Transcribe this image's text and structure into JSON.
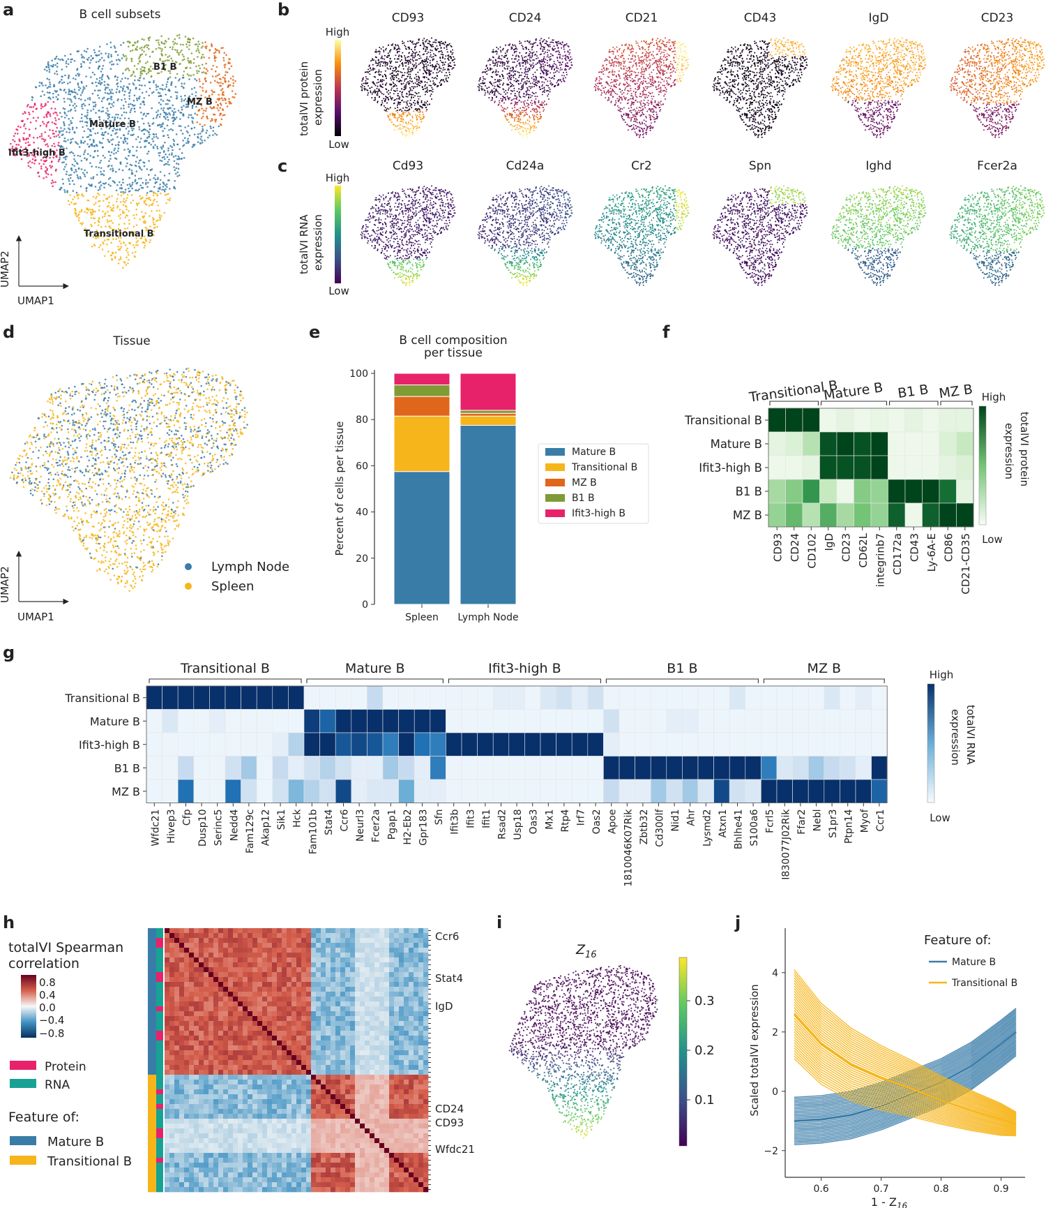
{
  "colors": {
    "mature": "#3a7ca8",
    "transitional": "#f6b51a",
    "mz": "#e0661b",
    "b1": "#7f9b35",
    "ifit3": "#e8226a",
    "protein": "#e8226a",
    "rna": "#17a294",
    "greens_hi": "#00441b",
    "blues_hi": "#08306b",
    "diag": "#67001f"
  },
  "panels": {
    "a": {
      "label": "a",
      "title": "B cell subsets",
      "axis_x": "UMAP1",
      "axis_y": "UMAP2",
      "clusters": [
        "B1 B",
        "MZ B",
        "Mature B",
        "Ifit3-high B",
        "Transitional B"
      ]
    },
    "b": {
      "label": "b",
      "colorbar_label_1": "totalVI protein",
      "colorbar_label_2": "expression",
      "high": "High",
      "low": "Low",
      "markers": [
        "CD93",
        "CD24",
        "CD21",
        "CD43",
        "IgD",
        "CD23"
      ]
    },
    "c": {
      "label": "c",
      "colorbar_label_1": "totalVI RNA",
      "colorbar_label_2": "expression",
      "high": "High",
      "low": "Low",
      "markers": [
        "Cd93",
        "Cd24a",
        "Cr2",
        "Spn",
        "Ighd",
        "Fcer2a"
      ]
    },
    "d": {
      "label": "d",
      "title": "Tissue",
      "axis_x": "UMAP1",
      "axis_y": "UMAP2",
      "legend": [
        "Lymph Node",
        "Spleen"
      ]
    },
    "e": {
      "label": "e"
    },
    "f": {
      "label": "f",
      "colorbar_label_1": "totalVI protein",
      "colorbar_label_2": "expression",
      "high": "High",
      "low": "Low"
    },
    "g": {
      "label": "g",
      "colorbar_label_1": "totalVI RNA",
      "colorbar_label_2": "expression",
      "high": "High",
      "low": "Low"
    },
    "h": {
      "label": "h",
      "cbar_title_1": "totalVI Spearman",
      "cbar_title_2": "correlation",
      "cbar_ticks": [
        "0.8",
        "0.4",
        "0.0",
        "−0.4",
        "−0.8"
      ],
      "legend_protein": "Protein",
      "legend_rna": "RNA",
      "feature_of": "Feature of:",
      "feature_mature": "Mature B",
      "feature_trans": "Transitional B",
      "row_labels": [
        "Ccr6",
        "Stat4",
        "IgD",
        "CD24",
        "CD93",
        "Wfdc21"
      ]
    },
    "i": {
      "label": "i",
      "title": "Z",
      "title_sub": "16",
      "cbar_ticks": [
        "0.3",
        "0.2",
        "0.1"
      ]
    },
    "j": {
      "label": "j"
    }
  },
  "chart_data": [
    {
      "type": "bar",
      "id": "e",
      "title": "B cell composition per tissue",
      "title_line1": "B cell composition",
      "title_line2": "per tissue",
      "categories": [
        "Spleen",
        "Lymph Node"
      ],
      "ylabel": "Percent of cells per tissue",
      "ylim": [
        0,
        100
      ],
      "yticks": [
        "0",
        "20",
        "40",
        "60",
        "80",
        "100"
      ],
      "stacked": true,
      "series": [
        {
          "name": "Mature B",
          "values": [
            57.5,
            77.5
          ]
        },
        {
          "name": "Transitional B",
          "values": [
            24,
            4
          ]
        },
        {
          "name": "MZ B",
          "values": [
            8.5,
            1.2
          ]
        },
        {
          "name": "B1 B",
          "values": [
            5,
            1.3
          ]
        },
        {
          "name": "Ifit3-high B",
          "values": [
            5,
            16
          ]
        }
      ]
    },
    {
      "type": "heatmap",
      "id": "f",
      "rows": [
        "Transitional B",
        "Mature B",
        "Ifit3-high B",
        "B1 B",
        "MZ B"
      ],
      "columns": [
        "CD93",
        "CD24",
        "CD102",
        "IgD",
        "CD23",
        "CD62L",
        "integrinb7",
        "CD172a",
        "CD43",
        "Ly-6A-E",
        "CD86",
        "CD21-CD35"
      ],
      "groups": [
        {
          "name": "Transitional B",
          "start": 0,
          "end": 2
        },
        {
          "name": "Mature B",
          "start": 3,
          "end": 6
        },
        {
          "name": "B1 B",
          "start": 7,
          "end": 9
        },
        {
          "name": "MZ B",
          "start": 10,
          "end": 11
        }
      ],
      "values": [
        [
          1.0,
          1.0,
          1.0,
          0.05,
          0.1,
          0.05,
          0.08,
          0.05,
          0.1,
          0.05,
          0.1,
          0.1
        ],
        [
          0.1,
          0.15,
          0.3,
          0.95,
          1.0,
          0.95,
          1.0,
          0.05,
          0.05,
          0.05,
          0.15,
          0.25
        ],
        [
          0.05,
          0.05,
          0.1,
          0.95,
          0.95,
          0.95,
          1.0,
          0.05,
          0.05,
          0.05,
          0.1,
          0.15
        ],
        [
          0.35,
          0.45,
          0.7,
          0.25,
          0.05,
          0.45,
          0.4,
          1.0,
          1.0,
          1.0,
          0.85,
          0.1
        ],
        [
          0.4,
          0.55,
          0.3,
          0.6,
          0.35,
          0.5,
          0.4,
          0.9,
          0.05,
          0.9,
          1.0,
          1.0
        ]
      ]
    },
    {
      "type": "heatmap",
      "id": "g",
      "rows": [
        "Transitional B",
        "Mature B",
        "Ifit3-high B",
        "B1 B",
        "MZ B"
      ],
      "columns": [
        "Wfdc21",
        "Hivep3",
        "Cfp",
        "Dusp10",
        "Serinc5",
        "Nedd4",
        "Fam129c",
        "Akap12",
        "Sik1",
        "Hck",
        "Fam101b",
        "Stat4",
        "Ccr6",
        "Neurl3",
        "Fcer2a",
        "Pgap1",
        "H2-Eb2",
        "Gpr183",
        "Sfn",
        "Ifit3b",
        "Ifit3",
        "Ifit1",
        "Rsad2",
        "Usp18",
        "Oas3",
        "Mx1",
        "Rtp4",
        "Irf7",
        "Oas2",
        "Apoe",
        "1810046K07Rik",
        "Zbtb32",
        "Cd300lf",
        "Nid1",
        "Ahr",
        "Lysmd2",
        "Atxn1",
        "Bhlhe41",
        "S100a6",
        "Fcrl5",
        "I830077J02Rik",
        "Ffar2",
        "Nebl",
        "S1pr3",
        "Ptpn14",
        "Myof",
        "Ccr1"
      ],
      "groups": [
        {
          "name": "Transitional B",
          "start": 0,
          "end": 9
        },
        {
          "name": "Mature B",
          "start": 10,
          "end": 18
        },
        {
          "name": "Ifit3-high B",
          "start": 19,
          "end": 28
        },
        {
          "name": "B1 B",
          "start": 29,
          "end": 38
        },
        {
          "name": "MZ B",
          "start": 39,
          "end": 46
        }
      ],
      "values": [
        [
          1,
          1,
          1,
          1,
          1,
          1,
          1,
          1,
          1,
          1,
          0.05,
          0.05,
          0.05,
          0.05,
          0.25,
          0.05,
          0.05,
          0.05,
          0.05,
          0.05,
          0.05,
          0.05,
          0.1,
          0.1,
          0.05,
          0.15,
          0.2,
          0.1,
          0.2,
          0.05,
          0.05,
          0.05,
          0.05,
          0.05,
          0.05,
          0.05,
          0.05,
          0.15,
          0.05,
          0.05,
          0.05,
          0.05,
          0.05,
          0.15,
          0.05,
          0.1,
          0.05
        ],
        [
          0.05,
          0.15,
          0.05,
          0.05,
          0.1,
          0.05,
          0.05,
          0.05,
          0.05,
          0.05,
          0.95,
          0.8,
          1,
          1,
          1,
          1,
          1,
          1,
          1,
          0.05,
          0.05,
          0.05,
          0.05,
          0.05,
          0.05,
          0.05,
          0.05,
          0.05,
          0.05,
          0.2,
          0.05,
          0.05,
          0.05,
          0.1,
          0.1,
          0.05,
          0.05,
          0.05,
          0.05,
          0.05,
          0.05,
          0.05,
          0.05,
          0.05,
          0.05,
          0.05,
          0.05
        ],
        [
          0.05,
          0.05,
          0.05,
          0.05,
          0.05,
          0.05,
          0.05,
          0.05,
          0.1,
          0.3,
          1,
          1,
          0.85,
          0.9,
          0.85,
          0.7,
          1,
          0.75,
          0.7,
          1,
          1,
          1,
          1,
          1,
          1,
          1,
          1,
          1,
          1,
          0.1,
          0.05,
          0.05,
          0.05,
          0.05,
          0.05,
          0.05,
          0.05,
          0.05,
          0.05,
          0.05,
          0.05,
          0.05,
          0.05,
          0.05,
          0.05,
          0.05,
          0.05
        ],
        [
          0.05,
          0.05,
          0.25,
          0.05,
          0.05,
          0.2,
          0.35,
          0.05,
          0.25,
          0.1,
          0.2,
          0.3,
          0.2,
          0.1,
          0.1,
          0.35,
          0.25,
          0.1,
          0.7,
          0.05,
          0.05,
          0.05,
          0.05,
          0.05,
          0.05,
          0.05,
          0.05,
          0.05,
          0.05,
          1,
          1,
          1,
          1,
          1,
          1,
          1,
          1,
          1,
          1,
          0.7,
          0.15,
          0.2,
          0.35,
          0.25,
          0.2,
          0.1,
          1
        ],
        [
          0.05,
          0.05,
          0.75,
          0.05,
          0.05,
          0.75,
          0.2,
          0.05,
          0.2,
          0.45,
          0.3,
          0.2,
          0.9,
          0.1,
          0.15,
          0.15,
          0.5,
          0.1,
          0.1,
          0.05,
          0.05,
          0.05,
          0.05,
          0.05,
          0.05,
          0.05,
          0.05,
          0.05,
          0.05,
          0.25,
          0.1,
          0.1,
          0.35,
          0.2,
          0.35,
          0.15,
          0.9,
          0.2,
          0.15,
          1,
          1,
          1,
          1,
          1,
          1,
          1,
          0.8
        ]
      ]
    },
    {
      "type": "line",
      "id": "j",
      "title": "",
      "xlabel": "1 - Z16",
      "xlabel_main": "1 - Z",
      "xlabel_sub": "16",
      "ylabel": "Scaled totalVI expression",
      "xlim": [
        0.54,
        0.94
      ],
      "ylim": [
        -2.9,
        5.5
      ],
      "xticks": [
        "0.6",
        "0.7",
        "0.8",
        "0.9"
      ],
      "yticks": [
        "−2",
        "0",
        "2",
        "4"
      ],
      "legend_title": "Feature of:",
      "series": [
        {
          "name": "Mature B",
          "x": [
            0.555,
            0.6,
            0.65,
            0.7,
            0.75,
            0.8,
            0.85,
            0.9,
            0.925
          ],
          "values": [
            -1.0,
            -0.95,
            -0.8,
            -0.5,
            -0.1,
            0.3,
            0.85,
            1.6,
            2.0
          ]
        },
        {
          "name": "Transitional B",
          "x": [
            0.555,
            0.6,
            0.65,
            0.7,
            0.75,
            0.8,
            0.85,
            0.9,
            0.925
          ],
          "values": [
            2.6,
            1.6,
            0.9,
            0.45,
            0.1,
            -0.3,
            -0.65,
            -0.95,
            -1.1
          ]
        }
      ]
    },
    {
      "type": "heatmap",
      "id": "h",
      "title": "totalVI Spearman correlation",
      "blocks": [
        "Mature B",
        "Transitional B"
      ],
      "colorbar_range": [
        -0.8,
        0.8
      ]
    }
  ]
}
